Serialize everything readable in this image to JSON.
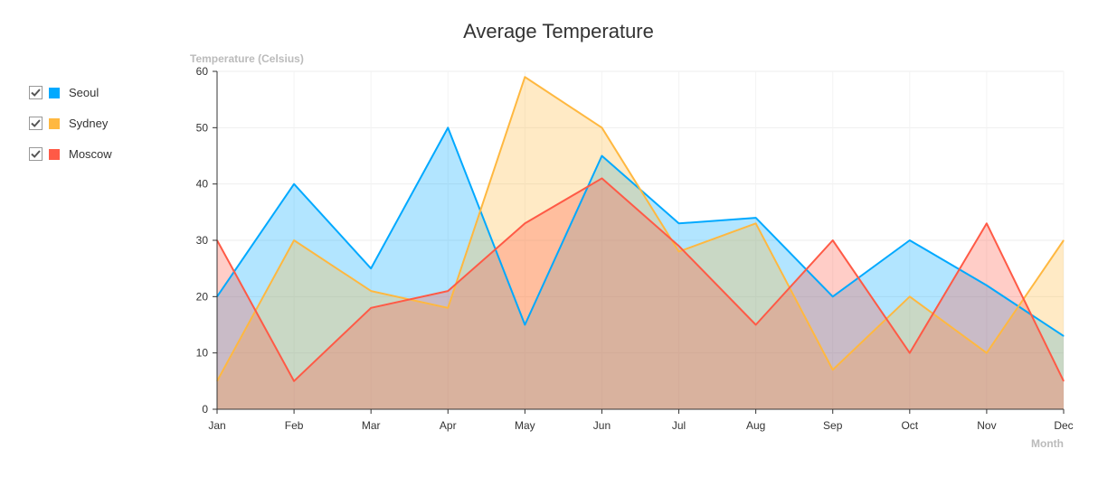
{
  "chart_data": {
    "type": "area",
    "title": "Average Temperature",
    "ylabel": "Temperature (Celsius)",
    "xlabel": "Month",
    "categories": [
      "Jan",
      "Feb",
      "Mar",
      "Apr",
      "May",
      "Jun",
      "Jul",
      "Aug",
      "Sep",
      "Oct",
      "Nov",
      "Dec"
    ],
    "ylim": [
      0,
      60
    ],
    "yticks": [
      0,
      10,
      20,
      30,
      40,
      50,
      60
    ],
    "grid": true,
    "legend_position": "left",
    "series": [
      {
        "name": "Seoul",
        "color": "#00a9ff",
        "values": [
          20,
          40,
          25,
          50,
          15,
          45,
          33,
          34,
          20,
          30,
          22,
          13
        ]
      },
      {
        "name": "Sydney",
        "color": "#ffb840",
        "values": [
          5,
          30,
          21,
          18,
          59,
          50,
          28,
          33,
          7,
          20,
          10,
          30
        ]
      },
      {
        "name": "Moscow",
        "color": "#ff5a46",
        "values": [
          30,
          5,
          18,
          21,
          33,
          41,
          29,
          15,
          30,
          10,
          33,
          5
        ]
      }
    ]
  },
  "legend": {
    "items": [
      {
        "label": "Seoul",
        "color": "#00a9ff",
        "checked": true
      },
      {
        "label": "Sydney",
        "color": "#ffb840",
        "checked": true
      },
      {
        "label": "Moscow",
        "color": "#ff5a46",
        "checked": true
      }
    ]
  }
}
